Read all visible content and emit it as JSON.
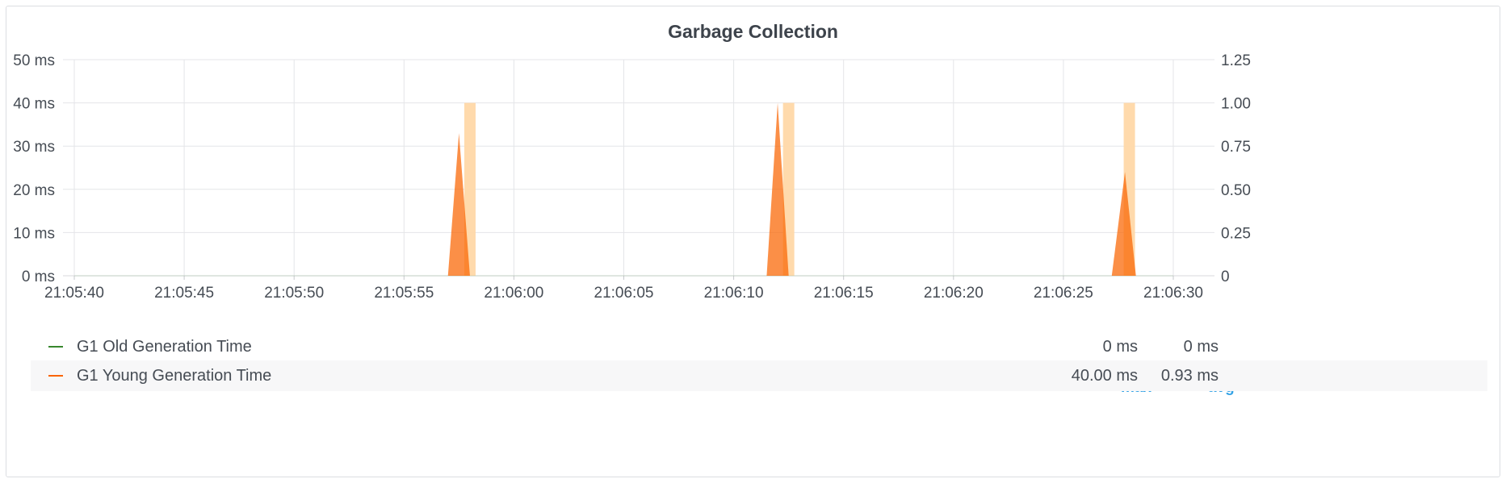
{
  "panel": {
    "title": "Garbage Collection"
  },
  "legend": {
    "columns": [
      "max",
      "avg"
    ],
    "rows": [
      {
        "label": "G1 Old Generation Time",
        "color": "#37872d",
        "max": "0 ms",
        "avg": "0 ms"
      },
      {
        "label": "G1 Young Generation Time",
        "color": "#fa6400",
        "max": "40.00 ms",
        "avg": "0.93 ms"
      }
    ]
  },
  "chart_data": {
    "type": "area",
    "title": "Garbage Collection",
    "x_ticks": [
      "21:05:40",
      "21:05:45",
      "21:05:50",
      "21:05:55",
      "21:06:00",
      "21:06:05",
      "21:06:10",
      "21:06:15",
      "21:06:20",
      "21:06:25",
      "21:06:30"
    ],
    "y_left": {
      "ticks": [
        "0 ms",
        "10 ms",
        "20 ms",
        "30 ms",
        "40 ms",
        "50 ms"
      ],
      "range": [
        0,
        50
      ],
      "unit": "ms"
    },
    "y_right": {
      "ticks": [
        "0",
        "0.25",
        "0.50",
        "0.75",
        "1.00",
        "1.25"
      ],
      "range": [
        0,
        1.25
      ]
    },
    "grid": true,
    "legend_position": "bottom",
    "series": [
      {
        "name": "G1 Old Generation Time",
        "color": "#37872d",
        "axis": "left",
        "points": [
          [
            "21:05:40",
            0
          ],
          [
            "21:06:30",
            0
          ]
        ]
      },
      {
        "name": "G1 Young Generation Time",
        "color": "#fa6400",
        "axis": "left",
        "points": [
          [
            "21:05:57.0",
            0
          ],
          [
            "21:05:57.5",
            33
          ],
          [
            "21:05:58.0",
            0
          ],
          [
            "21:06:11.5",
            0
          ],
          [
            "21:06:12.0",
            40
          ],
          [
            "21:06:12.5",
            0
          ],
          [
            "21:06:27.2",
            0
          ],
          [
            "21:06:27.8",
            24
          ],
          [
            "21:06:28.3",
            0
          ]
        ]
      },
      {
        "name": "",
        "color": "#ffd8a8",
        "axis": "right",
        "type": "bar",
        "points": [
          [
            "21:05:58.0",
            1.0
          ],
          [
            "21:06:12.5",
            1.0
          ],
          [
            "21:06:28.0",
            1.0
          ]
        ]
      }
    ]
  }
}
